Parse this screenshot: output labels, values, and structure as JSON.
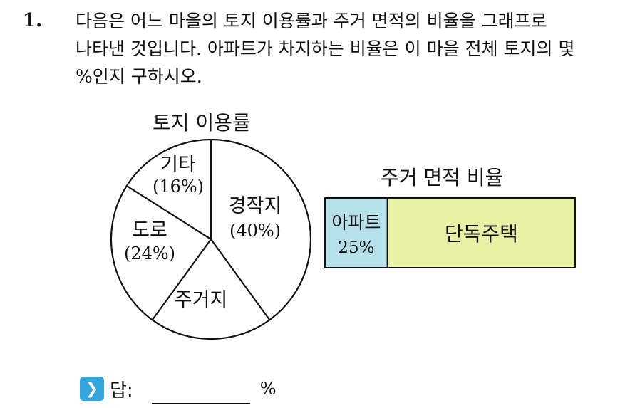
{
  "question": {
    "number": "1.",
    "lines": [
      "다음은 어느 마을의 토지 이용률과 주거 면적의 비율을 그래프로",
      "나타낸 것입니다. 아파트가 차지하는 비율은 이 마을 전체 토지의 몇",
      "%인지 구하시오."
    ]
  },
  "answer": {
    "icon": "chevron-right-icon",
    "label": "답:",
    "value": "",
    "unit": "%"
  },
  "chart_data": [
    {
      "type": "pie",
      "title": "토지 이용률",
      "slices": [
        {
          "label": "경작지",
          "value_label": "(40%)",
          "value": 40
        },
        {
          "label": "주거지",
          "value_label": "",
          "value": 20
        },
        {
          "label": "도로",
          "value_label": "(24%)",
          "value": 24
        },
        {
          "label": "기타",
          "value_label": "(16%)",
          "value": 16
        }
      ]
    },
    {
      "type": "bar",
      "orientation": "horizontal-stacked",
      "title": "주거 면적 비율",
      "segments": [
        {
          "label": "아파트",
          "value_label": "25%",
          "value": 25,
          "color": "#b7e1ea"
        },
        {
          "label": "단독주택",
          "value_label": "",
          "value": 75,
          "color": "#e8f0a6"
        }
      ]
    }
  ]
}
